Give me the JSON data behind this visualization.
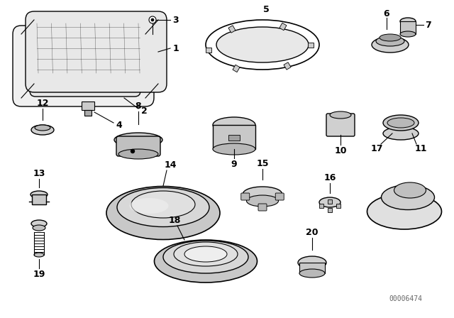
{
  "title": "",
  "bg_color": "#ffffff",
  "part_numbers": [
    1,
    2,
    3,
    4,
    5,
    6,
    7,
    8,
    9,
    10,
    11,
    12,
    13,
    14,
    15,
    16,
    17,
    18,
    19,
    20
  ],
  "catalog_number": "00006474",
  "line_color": "#000000",
  "gray_fill": "#d0d0d0",
  "dark_fill": "#888888"
}
